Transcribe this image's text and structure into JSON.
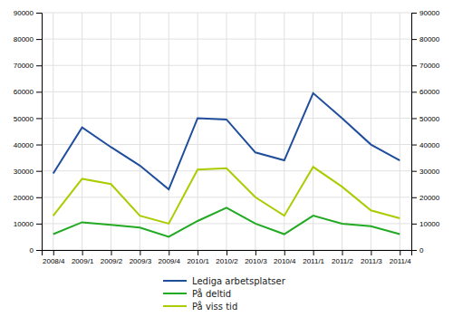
{
  "chart_data": {
    "type": "line",
    "categories": [
      "2008/4",
      "2009/1",
      "2009/2",
      "2009/3",
      "2009/4",
      "2010/1",
      "2010/2",
      "2010/3",
      "2010/4",
      "2011/1",
      "2011/2",
      "2011/3",
      "2011/4"
    ],
    "series": [
      {
        "name": "Lediga arbetsplatser",
        "color": "#1F4E9C",
        "values": [
          29000,
          46500,
          39000,
          32000,
          23000,
          50000,
          49500,
          37000,
          34000,
          59500,
          50000,
          40000,
          34000
        ]
      },
      {
        "name": "På deltid",
        "color": "#22AA22",
        "values": [
          6000,
          10500,
          9500,
          8500,
          5000,
          11000,
          16000,
          10000,
          6000,
          13000,
          10000,
          9000,
          6000
        ]
      },
      {
        "name": "På viss tid",
        "color": "#AACC00",
        "values": [
          13000,
          27000,
          25000,
          13000,
          10000,
          30500,
          31000,
          20000,
          13000,
          31500,
          24000,
          15000,
          12000
        ]
      }
    ],
    "ylim": [
      0,
      90000
    ],
    "yticks": [
      0,
      10000,
      20000,
      30000,
      40000,
      50000,
      60000,
      70000,
      80000,
      90000
    ],
    "y2lim": [
      0,
      90000
    ],
    "y2ticks": [
      0,
      10000,
      20000,
      30000,
      40000,
      50000,
      60000,
      70000,
      80000,
      90000
    ],
    "grid": true,
    "legend": "bottom"
  }
}
